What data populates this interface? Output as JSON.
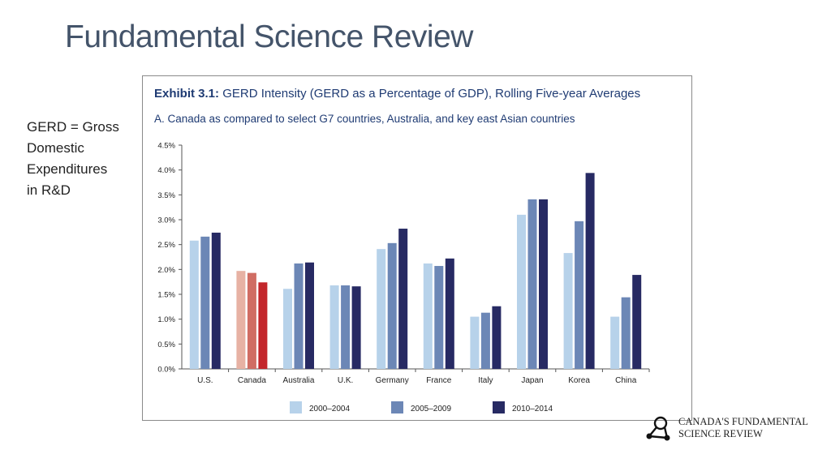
{
  "slide": {
    "title": "Fundamental Science Review",
    "note_lines": [
      "GERD = Gross",
      "Domestic",
      "Expenditures",
      "in R&D"
    ]
  },
  "exhibit": {
    "label": "Exhibit 3.1:",
    "title": "GERD Intensity (GERD as a Percentage of GDP), Rolling Five-year Averages",
    "subtitle": "A. Canada as compared to select G7 countries, Australia, and key east Asian countries"
  },
  "logo": {
    "line1": "CANADA'S FUNDAMENTAL",
    "line2": "SCIENCE REVIEW",
    "icon": "network-nodes-icon"
  },
  "colors": {
    "s1": "#b7d2ea",
    "s2": "#6c87b6",
    "s3": "#272a63",
    "canada_s1": "#e7b2a4",
    "canada_s2": "#d06d63",
    "canada_s3": "#c3262b",
    "title": "#44546a",
    "exhibit": "#1f3b73"
  },
  "chart_data": {
    "type": "bar",
    "title": "GERD Intensity (GERD as a Percentage of GDP), Rolling Five-year Averages",
    "categories": [
      "U.S.",
      "Canada",
      "Australia",
      "U.K.",
      "Germany",
      "France",
      "Italy",
      "Japan",
      "Korea",
      "China"
    ],
    "series": [
      {
        "name": "2000–2004",
        "values": [
          2.58,
          1.97,
          1.61,
          1.68,
          2.41,
          2.12,
          1.05,
          3.1,
          2.33,
          1.05
        ]
      },
      {
        "name": "2005–2009",
        "values": [
          2.66,
          1.93,
          2.12,
          1.68,
          2.53,
          2.07,
          1.13,
          3.41,
          2.97,
          1.44
        ]
      },
      {
        "name": "2010–2014",
        "values": [
          2.74,
          1.74,
          2.14,
          1.66,
          2.82,
          2.22,
          1.26,
          3.41,
          3.94,
          1.89
        ]
      }
    ],
    "highlight_category": "Canada",
    "yticks": [
      "0.0%",
      "0.5%",
      "1.0%",
      "1.5%",
      "2.0%",
      "2.5%",
      "3.0%",
      "3.5%",
      "4.0%",
      "4.5%"
    ],
    "ylim": [
      0,
      4.5
    ],
    "xlabel": "",
    "ylabel": "",
    "grid": false,
    "legend_position": "bottom-center"
  }
}
